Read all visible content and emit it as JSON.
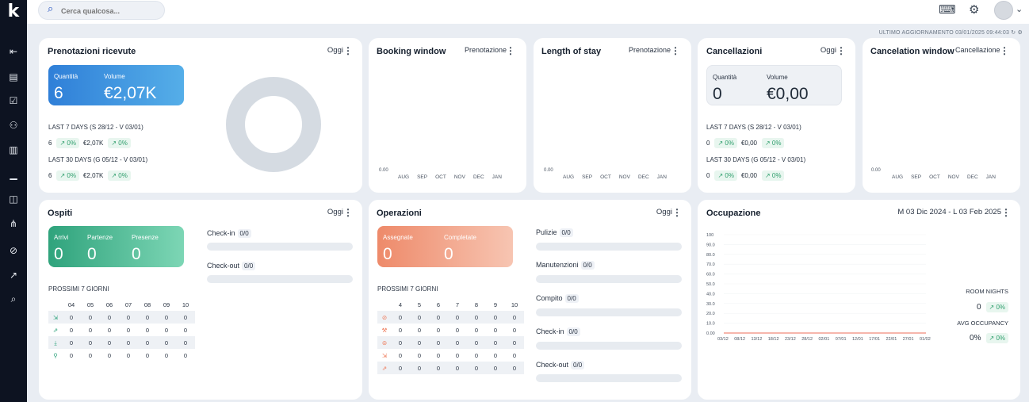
{
  "app": {
    "logo": "k"
  },
  "sidebar": {
    "items": [
      {
        "name": "collapse-icon",
        "glyph": "⇤"
      },
      {
        "name": "bookings-icon",
        "glyph": "▤"
      },
      {
        "name": "checklist-icon",
        "glyph": "☑"
      },
      {
        "name": "guests-icon",
        "glyph": "⚇"
      },
      {
        "name": "document-icon",
        "glyph": "▥"
      },
      {
        "name": "reports-icon",
        "glyph": "▁"
      },
      {
        "name": "analytics-icon",
        "glyph": "◫"
      },
      {
        "name": "organization-icon",
        "glyph": "⋔"
      },
      {
        "name": "cleaning-icon",
        "glyph": "⊘"
      },
      {
        "name": "trend-icon",
        "glyph": "↗"
      },
      {
        "name": "chat-icon",
        "glyph": "⌕"
      }
    ]
  },
  "search": {
    "placeholder": "Cerca qualcosa..."
  },
  "header": {
    "last_update": "ULTIMO AGGIORNAMENTO 03/01/2025 09:44:03"
  },
  "prenotazioni": {
    "title": "Prenotazioni ricevute",
    "period": "Oggi",
    "q_label": "Quantità",
    "q_value": "6",
    "v_label": "Volume",
    "v_value": "€2,07K",
    "l7_title": "LAST 7 DAYS (S 28/12 - V 03/01)",
    "l7_q": "6",
    "l7_q_pct": "0%",
    "l7_v": "€2,07K",
    "l7_v_pct": "0%",
    "l30_title": "LAST 30 DAYS (G 05/12 - V 03/01)",
    "l30_q": "6",
    "l30_q_pct": "0%",
    "l30_v": "€2,07K",
    "l30_v_pct": "0%"
  },
  "booking_window": {
    "title": "Booking window",
    "filter": "Prenotazione",
    "zero": "0.00",
    "months": [
      "AUG",
      "SEP",
      "OCT",
      "NOV",
      "DEC",
      "JAN"
    ]
  },
  "length_of_stay": {
    "title": "Length of stay",
    "filter": "Prenotazione",
    "zero": "0.00",
    "months": [
      "AUG",
      "SEP",
      "OCT",
      "NOV",
      "DEC",
      "JAN"
    ]
  },
  "cancellazioni": {
    "title": "Cancellazioni",
    "period": "Oggi",
    "q_label": "Quantità",
    "q_value": "0",
    "v_label": "Volume",
    "v_value": "€0,00",
    "l7_title": "LAST 7 DAYS (S 28/12 - V 03/01)",
    "l7_q": "0",
    "l7_q_pct": "0%",
    "l7_v": "€0,00",
    "l7_v_pct": "0%",
    "l30_title": "LAST 30 DAYS (G 05/12 - V 03/01)",
    "l30_q": "0",
    "l30_q_pct": "0%",
    "l30_v": "€0,00",
    "l30_v_pct": "0%"
  },
  "cancelation_window": {
    "title": "Cancelation window",
    "filter": "Cancellazione",
    "zero": "0.00",
    "months": [
      "AUG",
      "SEP",
      "OCT",
      "NOV",
      "DEC",
      "JAN"
    ]
  },
  "ospiti": {
    "title": "Ospiti",
    "period": "Oggi",
    "arrivi_label": "Arrivi",
    "arrivi": "0",
    "partenze_label": "Partenze",
    "partenze": "0",
    "presenze_label": "Presenze",
    "presenze": "0",
    "checkin_label": "Check-in",
    "checkin_val": "0/0",
    "checkout_label": "Check-out",
    "checkout_val": "0/0",
    "next_title": "PROSSIMI 7 GIORNI",
    "days": [
      "04",
      "05",
      "06",
      "07",
      "08",
      "09",
      "10"
    ],
    "rows": [
      [
        "0",
        "0",
        "0",
        "0",
        "0",
        "0",
        "0"
      ],
      [
        "0",
        "0",
        "0",
        "0",
        "0",
        "0",
        "0"
      ],
      [
        "0",
        "0",
        "0",
        "0",
        "0",
        "0",
        "0"
      ],
      [
        "0",
        "0",
        "0",
        "0",
        "0",
        "0",
        "0"
      ]
    ]
  },
  "operazioni": {
    "title": "Operazioni",
    "period": "Oggi",
    "assegnate_label": "Assegnate",
    "assegnate": "0",
    "completate_label": "Completate",
    "completate": "0",
    "pulizie_label": "Pulizie",
    "pulizie_val": "0/0",
    "manut_label": "Manutenzioni",
    "manut_val": "0/0",
    "compito_label": "Compito",
    "compito_val": "0/0",
    "checkin_label": "Check-in",
    "checkin_val": "0/0",
    "checkout_label": "Check-out",
    "checkout_val": "0/0",
    "next_title": "PROSSIMI 7 GIORNI",
    "days": [
      "4",
      "5",
      "6",
      "7",
      "8",
      "9",
      "10"
    ],
    "rows": [
      [
        "0",
        "0",
        "0",
        "0",
        "0",
        "0",
        "0"
      ],
      [
        "0",
        "0",
        "0",
        "0",
        "0",
        "0",
        "0"
      ],
      [
        "0",
        "0",
        "0",
        "0",
        "0",
        "0",
        "0"
      ],
      [
        "0",
        "0",
        "0",
        "0",
        "0",
        "0",
        "0"
      ],
      [
        "0",
        "0",
        "0",
        "0",
        "0",
        "0",
        "0"
      ]
    ]
  },
  "occupazione": {
    "title": "Occupazione",
    "range": "M 03 Dic 2024 - L 03 Feb 2025",
    "room_nights_label": "ROOM NIGHTS",
    "room_nights": "0",
    "room_nights_pct": "0%",
    "avg_label": "AVG OCCUPANCY",
    "avg": "0%",
    "avg_pct": "0%"
  },
  "chart_data": {
    "type": "line",
    "x": [
      "03/12",
      "08/12",
      "13/12",
      "18/12",
      "23/12",
      "28/12",
      "02/01",
      "07/01",
      "12/01",
      "17/01",
      "22/01",
      "27/01",
      "01/02"
    ],
    "yticks": [
      "100",
      "90.0",
      "80.0",
      "70.0",
      "60.0",
      "50.0",
      "40.0",
      "30.0",
      "20.0",
      "10.0",
      "0.00"
    ],
    "series": [
      {
        "values": [
          0,
          0,
          0,
          0,
          0,
          0,
          0,
          0,
          0,
          0,
          0,
          0,
          0
        ]
      }
    ],
    "ylim": [
      0,
      100
    ],
    "color": "#f08a7a"
  }
}
